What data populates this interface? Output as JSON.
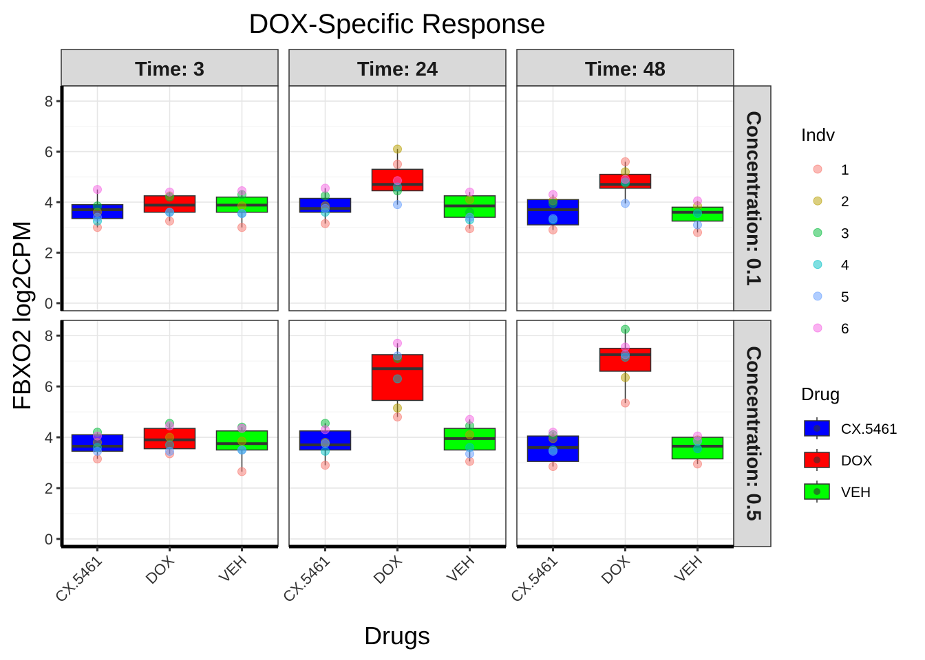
{
  "chart_data": {
    "type": "boxplot",
    "title": "DOX-Specific Response",
    "xlabel": "Drugs",
    "ylabel": "FBXO2  log2CPM",
    "ylim": [
      -0.3,
      8.6
    ],
    "yticks": [
      0,
      2,
      4,
      6,
      8
    ],
    "categories": [
      "CX.5461",
      "DOX",
      "VEH"
    ],
    "column_facet_labels": [
      "Time: 3",
      "Time: 24",
      "Time: 48"
    ],
    "row_facet_labels": [
      "Concentration: 0.1",
      "Concentration: 0.5"
    ],
    "fill_legend": {
      "title": "Drug",
      "entries": [
        {
          "label": "CX.5461",
          "color": "#0000ff"
        },
        {
          "label": "DOX",
          "color": "#ff0000"
        },
        {
          "label": "VEH",
          "color": "#00ff00"
        }
      ]
    },
    "point_legend": {
      "title": "Indv",
      "entries": [
        {
          "label": "1",
          "color": "#f8766d"
        },
        {
          "label": "2",
          "color": "#b79f00"
        },
        {
          "label": "3",
          "color": "#00ba38"
        },
        {
          "label": "4",
          "color": "#00bfc4"
        },
        {
          "label": "5",
          "color": "#619cff"
        },
        {
          "label": "6",
          "color": "#f564e3"
        }
      ]
    },
    "panels": [
      {
        "row": 0,
        "col": 0,
        "boxes": [
          {
            "drug": "CX.5461",
            "q1": 3.35,
            "median": 3.7,
            "q3": 3.9,
            "whisker_low": 3.0,
            "whisker_high": 4.5,
            "points": [
              3.0,
              3.6,
              3.85,
              3.25,
              3.4,
              4.5
            ]
          },
          {
            "drug": "DOX",
            "q1": 3.6,
            "median": 3.88,
            "q3": 4.25,
            "whisker_low": 3.25,
            "whisker_high": 4.4,
            "points": [
              3.25,
              4.25,
              4.2,
              3.6,
              3.6,
              4.4
            ]
          },
          {
            "drug": "VEH",
            "q1": 3.6,
            "median": 3.88,
            "q3": 4.2,
            "whisker_low": 3.0,
            "whisker_high": 4.45,
            "points": [
              3.0,
              3.85,
              4.3,
              3.55,
              3.55,
              4.45
            ]
          }
        ]
      },
      {
        "row": 0,
        "col": 1,
        "boxes": [
          {
            "drug": "CX.5461",
            "q1": 3.6,
            "median": 3.75,
            "q3": 4.15,
            "whisker_low": 3.15,
            "whisker_high": 4.55,
            "points": [
              3.15,
              3.85,
              4.25,
              3.6,
              3.75,
              4.55
            ]
          },
          {
            "drug": "DOX",
            "q1": 4.45,
            "median": 4.7,
            "q3": 5.3,
            "whisker_low": 3.9,
            "whisker_high": 6.1,
            "points": [
              5.5,
              6.1,
              4.45,
              4.6,
              3.9,
              4.85
            ]
          },
          {
            "drug": "VEH",
            "q1": 3.4,
            "median": 3.85,
            "q3": 4.25,
            "whisker_low": 2.95,
            "whisker_high": 4.4,
            "points": [
              2.95,
              4.1,
              3.6,
              3.3,
              3.4,
              4.4
            ]
          }
        ]
      },
      {
        "row": 0,
        "col": 2,
        "boxes": [
          {
            "drug": "CX.5461",
            "q1": 3.1,
            "median": 3.7,
            "q3": 4.1,
            "whisker_low": 2.9,
            "whisker_high": 4.3,
            "points": [
              2.9,
              4.05,
              3.95,
              3.3,
              3.35,
              4.3
            ]
          },
          {
            "drug": "DOX",
            "q1": 4.55,
            "median": 4.7,
            "q3": 5.1,
            "whisker_low": 3.95,
            "whisker_high": 5.6,
            "points": [
              5.6,
              5.2,
              4.75,
              4.8,
              3.95,
              4.9
            ]
          },
          {
            "drug": "VEH",
            "q1": 3.25,
            "median": 3.6,
            "q3": 3.8,
            "whisker_low": 2.8,
            "whisker_high": 4.05,
            "points": [
              2.8,
              3.85,
              3.6,
              3.55,
              3.1,
              4.05
            ]
          }
        ]
      },
      {
        "row": 1,
        "col": 0,
        "boxes": [
          {
            "drug": "CX.5461",
            "q1": 3.45,
            "median": 3.65,
            "q3": 4.1,
            "whisker_low": 3.15,
            "whisker_high": 4.2,
            "points": [
              3.15,
              3.8,
              4.2,
              3.6,
              3.45,
              4.05
            ]
          },
          {
            "drug": "DOX",
            "q1": 3.55,
            "median": 3.9,
            "q3": 4.35,
            "whisker_low": 3.35,
            "whisker_high": 4.55,
            "points": [
              3.35,
              4.0,
              4.55,
              3.7,
              3.45,
              4.45
            ]
          },
          {
            "drug": "VEH",
            "q1": 3.5,
            "median": 3.75,
            "q3": 4.25,
            "whisker_low": 2.65,
            "whisker_high": 4.4,
            "points": [
              2.65,
              3.85,
              4.4,
              3.5,
              3.5,
              4.35
            ]
          }
        ]
      },
      {
        "row": 1,
        "col": 1,
        "boxes": [
          {
            "drug": "CX.5461",
            "q1": 3.5,
            "median": 3.7,
            "q3": 4.25,
            "whisker_low": 2.9,
            "whisker_high": 4.55,
            "points": [
              2.9,
              3.8,
              4.55,
              3.45,
              3.75,
              4.3
            ]
          },
          {
            "drug": "DOX",
            "q1": 5.45,
            "median": 6.7,
            "q3": 7.25,
            "whisker_low": 4.8,
            "whisker_high": 7.7,
            "points": [
              4.8,
              5.15,
              7.1,
              6.3,
              7.2,
              7.7
            ]
          },
          {
            "drug": "VEH",
            "q1": 3.5,
            "median": 3.95,
            "q3": 4.35,
            "whisker_low": 3.05,
            "whisker_high": 4.7,
            "points": [
              3.05,
              4.1,
              4.45,
              3.6,
              3.35,
              4.7
            ]
          }
        ]
      },
      {
        "row": 1,
        "col": 2,
        "boxes": [
          {
            "drug": "CX.5461",
            "q1": 3.05,
            "median": 3.6,
            "q3": 4.05,
            "whisker_low": 2.85,
            "whisker_high": 4.2,
            "points": [
              2.85,
              3.95,
              4.1,
              3.5,
              3.45,
              4.2
            ]
          },
          {
            "drug": "DOX",
            "q1": 6.6,
            "median": 7.25,
            "q3": 7.5,
            "whisker_low": 5.35,
            "whisker_high": 8.25,
            "points": [
              5.35,
              6.35,
              8.25,
              7.15,
              7.25,
              7.55
            ]
          },
          {
            "drug": "VEH",
            "q1": 3.15,
            "median": 3.65,
            "q3": 4.0,
            "whisker_low": 2.95,
            "whisker_high": 4.05,
            "points": [
              2.95,
              3.9,
              3.55,
              3.55,
              3.85,
              4.05
            ]
          }
        ]
      }
    ]
  }
}
